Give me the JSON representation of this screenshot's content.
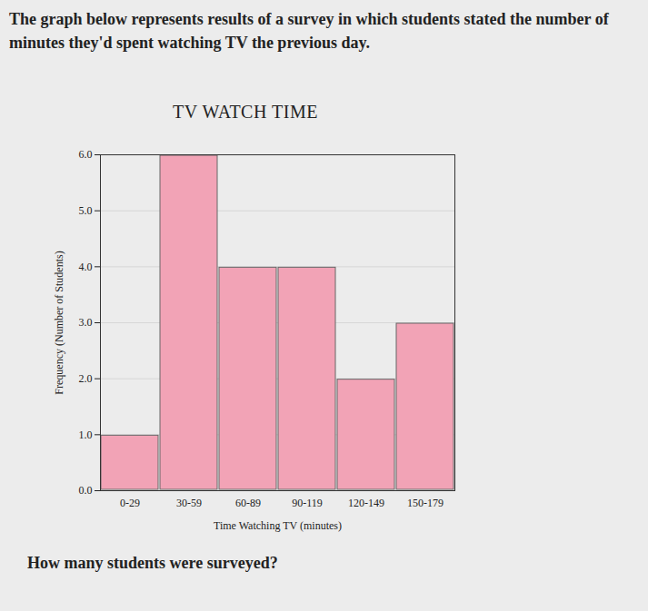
{
  "intro": "The graph below represents results of a survey in which students stated the number of minutes they'd spent watching TV the previous day.",
  "question": "How many students were surveyed?",
  "chart_data": {
    "type": "bar",
    "title": "TV WATCH TIME",
    "x_label": "Time Watching TV (minutes)",
    "y_label": "Frequency (Number of Students)",
    "categories": [
      "0-29",
      "30-59",
      "60-89",
      "90-119",
      "120-149",
      "150-179"
    ],
    "values": [
      1,
      6,
      4,
      4,
      2,
      3
    ],
    "color": "#f2a3b6",
    "ylim": [
      0,
      6
    ],
    "yticks": [
      0,
      1,
      2,
      3,
      4,
      5,
      6
    ],
    "grid": true
  }
}
